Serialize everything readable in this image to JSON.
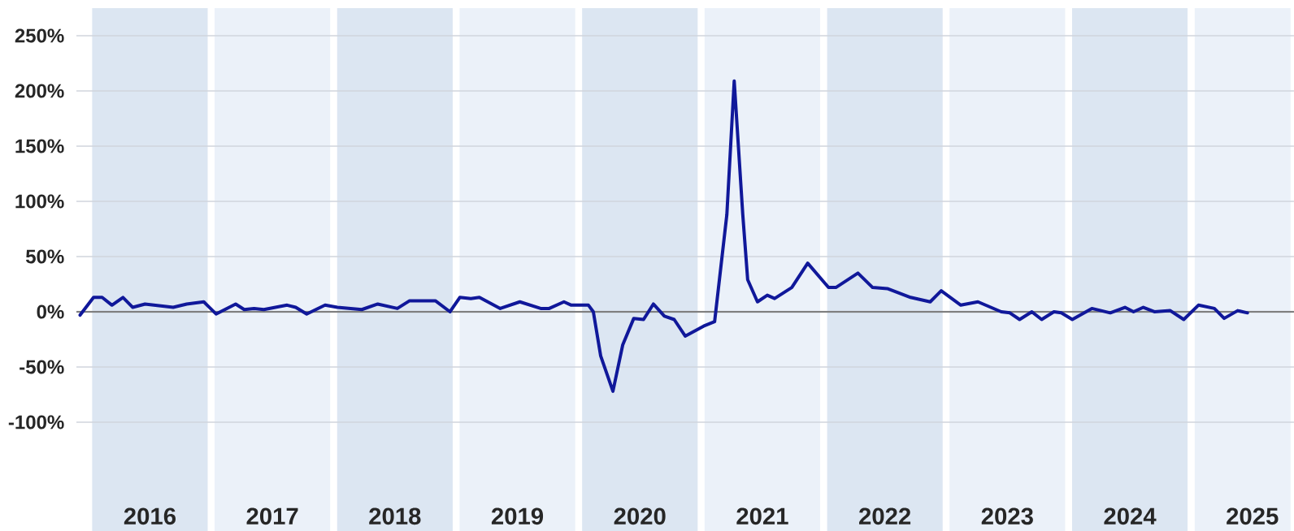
{
  "chart_data": {
    "type": "line",
    "x": [
      2015.93,
      2016.04,
      2016.11,
      2016.19,
      2016.28,
      2016.36,
      2016.46,
      2016.69,
      2016.8,
      2016.94,
      2017.04,
      2017.2,
      2017.27,
      2017.35,
      2017.43,
      2017.62,
      2017.69,
      2017.78,
      2017.93,
      2018.03,
      2018.23,
      2018.36,
      2018.52,
      2018.62,
      2018.83,
      2018.95,
      2019.03,
      2019.12,
      2019.19,
      2019.36,
      2019.52,
      2019.69,
      2019.76,
      2019.88,
      2019.94,
      2020.08,
      2020.12,
      2020.18,
      2020.28,
      2020.36,
      2020.45,
      2020.53,
      2020.61,
      2020.7,
      2020.78,
      2020.87,
      2021.02,
      2021.11,
      2021.21,
      2021.27,
      2021.34,
      2021.38,
      2021.46,
      2021.54,
      2021.6,
      2021.74,
      2021.87,
      2022.04,
      2022.1,
      2022.28,
      2022.4,
      2022.52,
      2022.71,
      2022.87,
      2022.96,
      2023.12,
      2023.26,
      2023.45,
      2023.52,
      2023.6,
      2023.7,
      2023.78,
      2023.88,
      2023.94,
      2024.03,
      2024.19,
      2024.34,
      2024.46,
      2024.53,
      2024.61,
      2024.7,
      2024.83,
      2024.94,
      2025.06,
      2025.19,
      2025.27,
      2025.38,
      2025.46
    ],
    "series": [
      {
        "color": "#10189a",
        "values": [
          -3,
          13,
          13,
          6,
          13,
          4,
          7,
          4,
          7,
          9,
          -2,
          7,
          2,
          3,
          2,
          6,
          4,
          -2,
          6,
          4,
          2,
          7,
          3,
          10,
          10,
          0,
          13,
          12,
          13,
          3,
          9,
          3,
          3,
          9,
          6,
          6,
          0,
          -40,
          -72,
          -30,
          -6,
          -7,
          7,
          -4,
          -7,
          -22,
          -13,
          -9,
          88,
          209,
          88,
          29,
          9,
          15,
          12,
          22,
          44,
          22,
          22,
          35,
          22,
          21,
          13,
          9,
          19,
          6,
          9,
          0,
          -1,
          -7,
          0,
          -7,
          0,
          -1,
          -7,
          3,
          -1,
          4,
          0,
          4,
          0,
          1,
          -7,
          6,
          3,
          -6,
          1,
          -1
        ]
      }
    ],
    "xlim": [
      2015.9,
      2025.84
    ],
    "ylim": [
      -100,
      250
    ],
    "xticks": [
      {
        "value": 2016.5,
        "label": "2016"
      },
      {
        "value": 2017.5,
        "label": "2017"
      },
      {
        "value": 2018.5,
        "label": "2018"
      },
      {
        "value": 2019.5,
        "label": "2019"
      },
      {
        "value": 2020.5,
        "label": "2020"
      },
      {
        "value": 2021.5,
        "label": "2021"
      },
      {
        "value": 2022.5,
        "label": "2022"
      },
      {
        "value": 2023.5,
        "label": "2023"
      },
      {
        "value": 2024.5,
        "label": "2024"
      },
      {
        "value": 2025.5,
        "label": "2025"
      }
    ],
    "yticks": [
      {
        "value": -100,
        "label": "-100%"
      },
      {
        "value": -50,
        "label": "-50%"
      },
      {
        "value": 0,
        "label": "0%"
      },
      {
        "value": 50,
        "label": "50%"
      },
      {
        "value": 100,
        "label": "100%"
      },
      {
        "value": 150,
        "label": "150%"
      },
      {
        "value": 200,
        "label": "200%"
      },
      {
        "value": 250,
        "label": "250%"
      }
    ],
    "grid": "y",
    "marker": "none",
    "line_style": "solid",
    "ref_lines": [
      {
        "axis": "y",
        "value": 0,
        "color": "#7f7f7f"
      }
    ],
    "bands": [
      {
        "axis": "x",
        "from": 2016,
        "to": 2017,
        "color": "#dce6f2"
      },
      {
        "axis": "x",
        "from": 2017,
        "to": 2018,
        "color": "#ebf1f9"
      },
      {
        "axis": "x",
        "from": 2018,
        "to": 2019,
        "color": "#dce6f2"
      },
      {
        "axis": "x",
        "from": 2019,
        "to": 2020,
        "color": "#ebf1f9"
      },
      {
        "axis": "x",
        "from": 2020,
        "to": 2021,
        "color": "#dce6f2"
      },
      {
        "axis": "x",
        "from": 2021,
        "to": 2022,
        "color": "#ebf1f9"
      },
      {
        "axis": "x",
        "from": 2022,
        "to": 2023,
        "color": "#dce6f2"
      },
      {
        "axis": "x",
        "from": 2023,
        "to": 2024,
        "color": "#ebf1f9"
      },
      {
        "axis": "x",
        "from": 2024,
        "to": 2025,
        "color": "#dce6f2"
      },
      {
        "axis": "x",
        "from": 2025,
        "to": 2026,
        "color": "#ebf1f9"
      }
    ]
  }
}
